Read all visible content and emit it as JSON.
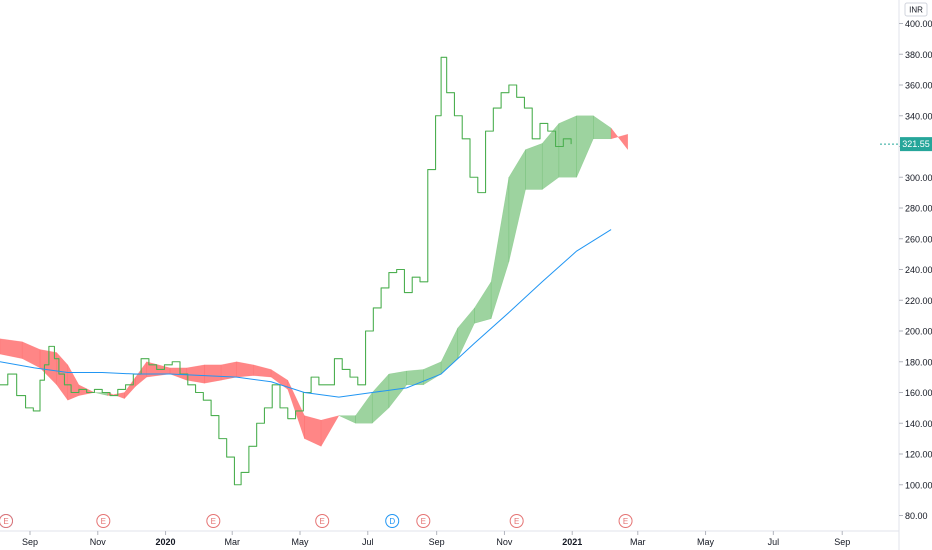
{
  "chart_data": {
    "type": "line",
    "currency": "INR",
    "last_price": "321.55",
    "y_ticks": [
      "400.00",
      "380.00",
      "360.00",
      "340.00",
      "320.00",
      "300.00",
      "280.00",
      "260.00",
      "240.00",
      "220.00",
      "200.00",
      "180.00",
      "160.00",
      "140.00",
      "120.00",
      "100.00",
      "80.00"
    ],
    "y_tick_values": [
      400,
      380,
      360,
      340,
      320,
      300,
      280,
      260,
      240,
      220,
      200,
      180,
      160,
      140,
      120,
      100,
      80
    ],
    "ylim": [
      76,
      408
    ],
    "x_ticks": [
      {
        "label": "Sep",
        "date": "2019-09-01",
        "bold": false
      },
      {
        "label": "Nov",
        "date": "2019-11-01",
        "bold": false
      },
      {
        "label": "2020",
        "date": "2020-01-01",
        "bold": true
      },
      {
        "label": "Mar",
        "date": "2020-03-01",
        "bold": false
      },
      {
        "label": "May",
        "date": "2020-05-01",
        "bold": false
      },
      {
        "label": "Jul",
        "date": "2020-07-01",
        "bold": false
      },
      {
        "label": "Sep",
        "date": "2020-09-01",
        "bold": false
      },
      {
        "label": "Nov",
        "date": "2020-11-01",
        "bold": false
      },
      {
        "label": "2021",
        "date": "2021-01-01",
        "bold": true
      },
      {
        "label": "Mar",
        "date": "2021-03-01",
        "bold": false
      },
      {
        "label": "May",
        "date": "2021-05-01",
        "bold": false
      },
      {
        "label": "Jul",
        "date": "2021-07-01",
        "bold": false
      },
      {
        "label": "Sep",
        "date": "2021-09-01",
        "bold": false
      }
    ],
    "x_range": [
      "2019-08-05",
      "2021-10-05"
    ],
    "events": [
      {
        "letter": "D",
        "date": "2019-08-05",
        "kind": "dividend"
      },
      {
        "letter": "E",
        "date": "2019-08-09",
        "kind": "earnings"
      },
      {
        "letter": "E",
        "date": "2019-11-06",
        "kind": "earnings"
      },
      {
        "letter": "E",
        "date": "2020-02-13",
        "kind": "earnings"
      },
      {
        "letter": "E",
        "date": "2020-05-21",
        "kind": "earnings"
      },
      {
        "letter": "D",
        "date": "2020-07-23",
        "kind": "dividend"
      },
      {
        "letter": "E",
        "date": "2020-08-20",
        "kind": "earnings"
      },
      {
        "letter": "E",
        "date": "2020-11-12",
        "kind": "earnings"
      },
      {
        "letter": "E",
        "date": "2021-02-18",
        "kind": "earnings"
      }
    ],
    "series": [
      {
        "type": "step-line",
        "color": "#4caf50",
        "points": [
          [
            "2019-08-05",
            165
          ],
          [
            "2019-08-12",
            172
          ],
          [
            "2019-08-20",
            158
          ],
          [
            "2019-08-28",
            150
          ],
          [
            "2019-09-04",
            148
          ],
          [
            "2019-09-10",
            168
          ],
          [
            "2019-09-14",
            178
          ],
          [
            "2019-09-18",
            190
          ],
          [
            "2019-09-23",
            182
          ],
          [
            "2019-09-27",
            172
          ],
          [
            "2019-10-02",
            165
          ],
          [
            "2019-10-08",
            160
          ],
          [
            "2019-10-15",
            162
          ],
          [
            "2019-10-22",
            160
          ],
          [
            "2019-10-29",
            162
          ],
          [
            "2019-11-05",
            160
          ],
          [
            "2019-11-12",
            158
          ],
          [
            "2019-11-19",
            162
          ],
          [
            "2019-11-26",
            165
          ],
          [
            "2019-12-03",
            172
          ],
          [
            "2019-12-10",
            182
          ],
          [
            "2019-12-17",
            178
          ],
          [
            "2019-12-24",
            175
          ],
          [
            "2019-12-31",
            178
          ],
          [
            "2020-01-07",
            180
          ],
          [
            "2020-01-14",
            172
          ],
          [
            "2020-01-21",
            165
          ],
          [
            "2020-01-28",
            160
          ],
          [
            "2020-02-04",
            155
          ],
          [
            "2020-02-11",
            145
          ],
          [
            "2020-02-18",
            130
          ],
          [
            "2020-02-25",
            118
          ],
          [
            "2020-03-03",
            100
          ],
          [
            "2020-03-09",
            108
          ],
          [
            "2020-03-16",
            125
          ],
          [
            "2020-03-23",
            140
          ],
          [
            "2020-03-30",
            150
          ],
          [
            "2020-04-06",
            165
          ],
          [
            "2020-04-13",
            150
          ],
          [
            "2020-04-20",
            143
          ],
          [
            "2020-04-27",
            148
          ],
          [
            "2020-05-04",
            160
          ],
          [
            "2020-05-11",
            170
          ],
          [
            "2020-05-18",
            165
          ],
          [
            "2020-05-25",
            165
          ],
          [
            "2020-06-01",
            182
          ],
          [
            "2020-06-08",
            175
          ],
          [
            "2020-06-15",
            170
          ],
          [
            "2020-06-22",
            165
          ],
          [
            "2020-06-29",
            200
          ],
          [
            "2020-07-06",
            215
          ],
          [
            "2020-07-13",
            228
          ],
          [
            "2020-07-20",
            238
          ],
          [
            "2020-07-27",
            240
          ],
          [
            "2020-08-03",
            225
          ],
          [
            "2020-08-10",
            235
          ],
          [
            "2020-08-17",
            232
          ],
          [
            "2020-08-24",
            305
          ],
          [
            "2020-08-31",
            340
          ],
          [
            "2020-09-05",
            378
          ],
          [
            "2020-09-10",
            355
          ],
          [
            "2020-09-17",
            340
          ],
          [
            "2020-09-24",
            325
          ],
          [
            "2020-10-01",
            300
          ],
          [
            "2020-10-08",
            290
          ],
          [
            "2020-10-15",
            330
          ],
          [
            "2020-10-22",
            345
          ],
          [
            "2020-10-29",
            355
          ],
          [
            "2020-11-05",
            360
          ],
          [
            "2020-11-12",
            352
          ],
          [
            "2020-11-19",
            345
          ],
          [
            "2020-11-26",
            325
          ],
          [
            "2020-12-03",
            335
          ],
          [
            "2020-12-10",
            330
          ],
          [
            "2020-12-17",
            320
          ],
          [
            "2020-12-24",
            325
          ],
          [
            "2020-12-31",
            321.55
          ]
        ]
      },
      {
        "type": "line",
        "color": "#2196f3",
        "points": [
          [
            "2019-08-05",
            180
          ],
          [
            "2019-09-05",
            176
          ],
          [
            "2019-10-05",
            173
          ],
          [
            "2019-11-05",
            173
          ],
          [
            "2019-12-05",
            172
          ],
          [
            "2020-01-05",
            172
          ],
          [
            "2020-02-05",
            171
          ],
          [
            "2020-03-05",
            170
          ],
          [
            "2020-04-05",
            167
          ],
          [
            "2020-05-05",
            160
          ],
          [
            "2020-06-05",
            157
          ],
          [
            "2020-07-05",
            160
          ],
          [
            "2020-08-05",
            163
          ],
          [
            "2020-09-05",
            172
          ],
          [
            "2020-10-05",
            192
          ],
          [
            "2020-11-05",
            212
          ],
          [
            "2020-12-05",
            232
          ],
          [
            "2021-01-05",
            252
          ],
          [
            "2021-02-05",
            266
          ]
        ]
      }
    ],
    "cloud": [
      [
        "2019-08-05",
        195,
        185
      ],
      [
        "2019-08-25",
        193,
        182
      ],
      [
        "2019-09-10",
        188,
        176
      ],
      [
        "2019-09-25",
        186,
        165
      ],
      [
        "2019-10-05",
        178,
        155
      ],
      [
        "2019-10-15",
        165,
        158
      ],
      [
        "2019-10-29",
        160,
        160
      ],
      [
        "2019-11-10",
        158,
        160
      ],
      [
        "2019-11-25",
        160,
        156
      ],
      [
        "2019-12-05",
        170,
        164
      ],
      [
        "2019-12-15",
        180,
        170
      ],
      [
        "2020-01-05",
        176,
        172
      ],
      [
        "2020-01-20",
        176,
        168
      ],
      [
        "2020-02-05",
        178,
        166
      ],
      [
        "2020-02-20",
        178,
        168
      ],
      [
        "2020-03-05",
        180,
        170
      ],
      [
        "2020-03-20",
        178,
        171
      ],
      [
        "2020-04-05",
        175,
        170
      ],
      [
        "2020-04-20",
        168,
        162
      ],
      [
        "2020-05-05",
        145,
        130
      ],
      [
        "2020-05-20",
        142,
        125
      ],
      [
        "2020-06-05",
        145,
        145
      ],
      [
        "2020-06-20",
        140,
        145
      ],
      [
        "2020-07-05",
        140,
        160
      ],
      [
        "2020-07-20",
        150,
        172
      ],
      [
        "2020-08-05",
        165,
        174
      ],
      [
        "2020-08-20",
        165,
        175
      ],
      [
        "2020-09-05",
        172,
        180
      ],
      [
        "2020-09-20",
        182,
        202
      ],
      [
        "2020-10-05",
        205,
        215
      ],
      [
        "2020-10-20",
        208,
        232
      ],
      [
        "2020-11-05",
        245,
        300
      ],
      [
        "2020-11-20",
        292,
        318
      ],
      [
        "2020-12-05",
        292,
        322
      ],
      [
        "2020-12-20",
        300,
        335
      ],
      [
        "2021-01-05",
        300,
        340
      ],
      [
        "2021-01-20",
        325,
        340
      ],
      [
        "2021-02-05",
        325,
        332
      ],
      [
        "2021-02-20",
        328,
        318
      ]
    ],
    "colors": {
      "price": "#4caf50",
      "ma": "#2196f3",
      "cloud_bull": "#4caf50",
      "cloud_bear": "#ff5252",
      "earnings": "#e57373",
      "dividend": "#2196f3",
      "badge": "#26a69a",
      "axis_line": "#e0e3eb"
    }
  }
}
